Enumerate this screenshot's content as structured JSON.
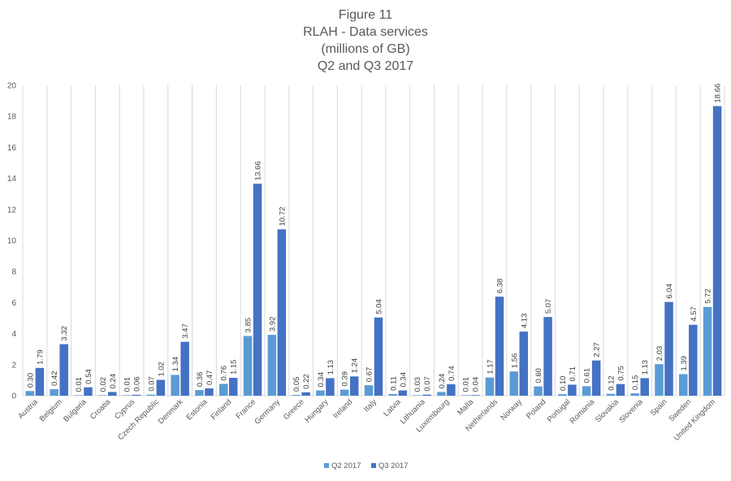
{
  "chart_data": {
    "type": "bar",
    "title": [
      "Figure 11",
      "RLAH - Data services",
      "(millions of GB)",
      "Q2 and Q3 2017"
    ],
    "categories": [
      "Austria",
      "Belgium",
      "Bulgaria",
      "Croatia",
      "Cyprus",
      "Czech Republic",
      "Denmark",
      "Estonia",
      "Finland",
      "France",
      "Germany",
      "Greece",
      "Hungary",
      "Ireland",
      "Italy",
      "Latvia",
      "Lithuania",
      "Luxembourg",
      "Malta",
      "Netherlands",
      "Norway",
      "Poland",
      "Portugal",
      "Romania",
      "Slovakia",
      "Slovenia",
      "Spain",
      "Sweden",
      "United Kingdom"
    ],
    "series": [
      {
        "name": "Q2 2017",
        "color": "#5b9bd5",
        "values": [
          0.3,
          0.42,
          0.01,
          0.02,
          0.01,
          0.07,
          1.34,
          0.36,
          0.76,
          3.85,
          3.92,
          0.05,
          0.34,
          0.39,
          0.67,
          0.11,
          0.03,
          0.24,
          0.01,
          1.17,
          1.56,
          0.6,
          0.1,
          0.61,
          0.12,
          0.15,
          2.03,
          1.39,
          5.72
        ],
        "labels": [
          "0.30",
          "0.42",
          "0.01",
          "0.02",
          "0.01",
          "0.07",
          "1.34",
          "0.36",
          "0.76",
          "3.85",
          "3.92",
          "0.05",
          "0.34",
          "0.39",
          "0.67",
          "0.11",
          "0.03",
          "0.24",
          "0.01",
          "1.17",
          "1.56",
          "0.60",
          "0.10",
          "0.61",
          "0.12",
          "0.15",
          "2.03",
          "1.39",
          "5.72"
        ]
      },
      {
        "name": "Q3 2017",
        "color": "#4472c4",
        "values": [
          1.79,
          3.32,
          0.54,
          0.24,
          0.06,
          1.02,
          3.47,
          0.47,
          1.15,
          13.66,
          10.72,
          0.22,
          1.13,
          1.24,
          5.04,
          0.34,
          0.07,
          0.74,
          0.04,
          6.38,
          4.13,
          5.07,
          0.71,
          2.27,
          0.75,
          1.13,
          6.04,
          4.57,
          18.66
        ],
        "labels": [
          "1.79",
          "3.32",
          "0.54",
          "0.24",
          "0.06",
          "1.02",
          "3.47",
          "0.47",
          "1.15",
          "13.66",
          "10.72",
          "0.22",
          "1.13",
          "1.24",
          "5.04",
          "0.34",
          "0.07",
          "0.74",
          "0.04",
          "6.38",
          "4.13",
          "5.07",
          "0.71",
          "2.27",
          "0.75",
          "1.13",
          "6.04",
          "4.57",
          "18.66"
        ]
      }
    ],
    "ylim": [
      0,
      20
    ],
    "yticks": [
      "0",
      "2",
      "4",
      "6",
      "8",
      "10",
      "12",
      "14",
      "16",
      "18",
      "20"
    ],
    "grid": "vertical",
    "legend": "bottom",
    "colors": {
      "axis_text": "#595959",
      "grid": "#d9d9d9",
      "title": "#595959"
    }
  }
}
